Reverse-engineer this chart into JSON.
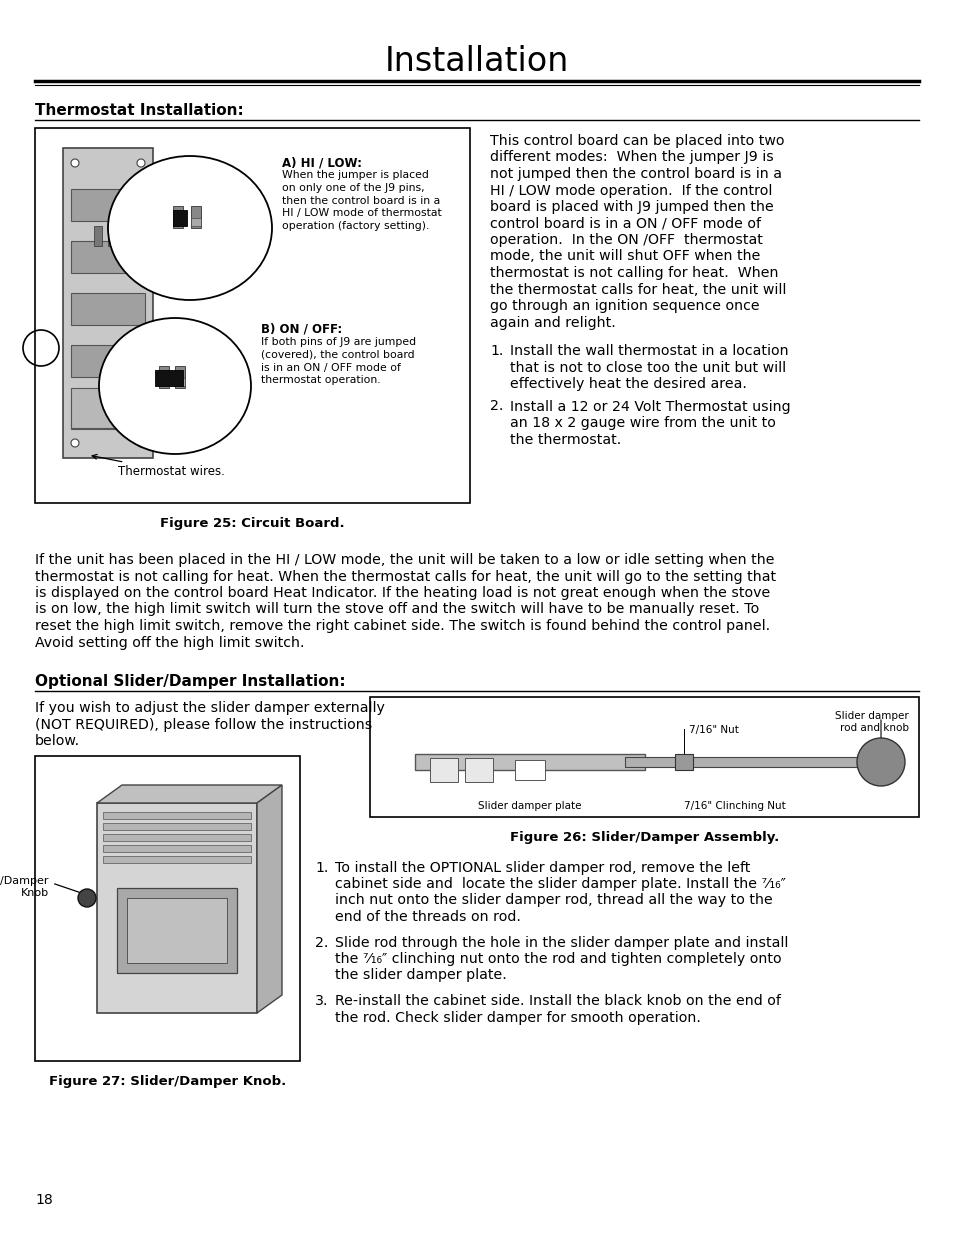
{
  "page_bg": "#ffffff",
  "title": "Installation",
  "title_font_size": 22,
  "section1_header": "Thermostat Installation:",
  "section2_header": "Optional Slider/Damper Installation:",
  "body_font_size": 10.2,
  "small_font_size": 8.5,
  "header_font_size": 11,
  "fig25_caption": "Figure 25: Circuit Board.",
  "fig26_caption": "Figure 26: Slider/Damper Assembly.",
  "fig27_caption": "Figure 27: Slider/Damper Knob.",
  "page_number": "18",
  "right_col_text_lines": [
    "This control board can be placed into two",
    "different modes:  When the jumper J9 is",
    "not jumped then the control board is in a",
    "HI / LOW mode operation.  If the control",
    "board is placed with J9 jumped then the",
    "control board is in a ON / OFF mode of",
    "operation.  In the ON /OFF  thermostat",
    "mode, the unit will shut OFF when the",
    "thermostat is not calling for heat.  When",
    "the thermostat calls for heat, the unit will",
    "go through an ignition sequence once",
    "again and relight."
  ],
  "list_item1_lines": [
    "Install the wall thermostat in a location",
    "that is not to close too the unit but will",
    "effectively heat the desired area."
  ],
  "list_item2_lines": [
    "Install a 12 or 24 Volt Thermostat using",
    "an 18 x 2 gauge wire from the unit to",
    "the thermostat."
  ],
  "middle_paragraph_lines": [
    "If the unit has been placed in the HI / LOW mode, the unit will be taken to a low or idle setting when the",
    "thermostat is not calling for heat. When the thermostat calls for heat, the unit will go to the setting that",
    "is displayed on the control board Heat Indicator. If the heating load is not great enough when the stove",
    "is on low, the high limit switch will turn the stove off and the switch will have to be manually reset. To",
    "reset the high limit switch, remove the right cabinet side. The switch is found behind the control panel.",
    "Avoid setting off the high limit switch."
  ],
  "slider_left_text_lines": [
    "If you wish to adjust the slider damper externally",
    "(NOT REQUIRED), please follow the instructions",
    "below."
  ],
  "slider_list1_lines": [
    "To install the OPTIONAL slider damper rod, remove the left",
    "cabinet side and  locate the slider damper plate. Install the ⁷⁄₁₆″",
    "inch nut onto the slider damper rod, thread all the way to the",
    "end of the threads on rod."
  ],
  "slider_list2_lines": [
    "Slide rod through the hole in the slider damper plate and install",
    "the ⁷⁄₁₆″ clinching nut onto the rod and tighten completely onto",
    "the slider damper plate."
  ],
  "slider_list3_lines": [
    "Re-install the cabinet side. Install the black knob on the end of",
    "the rod. Check slider damper for smooth operation."
  ],
  "label_a_hi_low_title": "A) HI / LOW:",
  "label_a_hi_low_body": "When the jumper is placed\non only one of the J9 pins,\nthen the control board is in a\nHI / LOW mode of thermostat\noperation (factory setting).",
  "label_b_on_off_title": "B) ON / OFF:",
  "label_b_on_off_body": "If both pins of J9 are jumped\n(covered), the control board\nis in an ON / OFF mode of\nthermostat operation.",
  "label_thermostat_wires": "Thermostat wires.",
  "fig26_label_rod": "Slider damper\nrod and knob",
  "fig26_label_nut": "7/16\" Nut",
  "fig26_label_plate": "Slider damper plate",
  "fig26_label_clinch": "7/16\" Clinching Nut",
  "fig27_label": "Slider/Damper\nKnob"
}
